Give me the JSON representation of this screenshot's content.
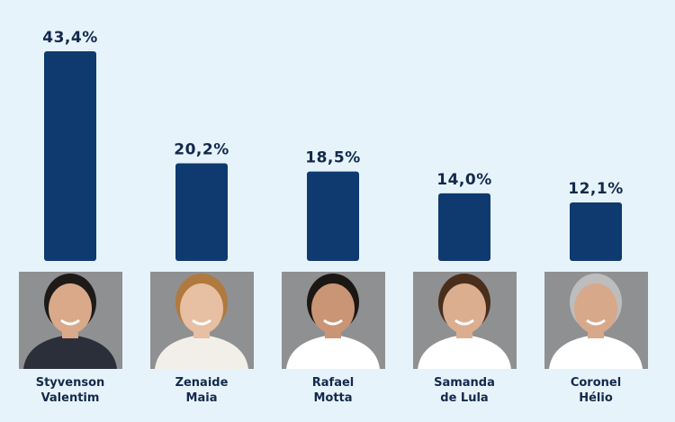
{
  "chart_data": {
    "type": "bar",
    "categories": [
      "Styvenson\nValentim",
      "Zenaide\nMaia",
      "Rafael\nMotta",
      "Samanda\nde Lula",
      "Coronel\nHélio"
    ],
    "values": [
      43.4,
      20.2,
      18.5,
      14.0,
      12.1
    ],
    "value_labels": [
      "43,4%",
      "20,2%",
      "18,5%",
      "14,0%",
      "12,1%"
    ],
    "color": "#0e3a70"
  }
}
